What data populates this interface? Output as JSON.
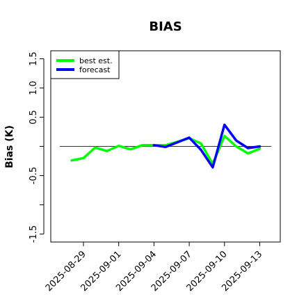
{
  "chart_data": {
    "type": "line",
    "title": "BIAS",
    "ylabel": "Bias (K)",
    "xlabel": "",
    "ylim": [
      -1.6,
      1.65
    ],
    "y_ticks": [
      -1.5,
      -1.0,
      -0.5,
      0.0,
      0.5,
      1.0,
      1.5
    ],
    "y_tick_labels": [
      "-1.5",
      "",
      "-0.5",
      "",
      "0.5",
      "1.0",
      "1.5"
    ],
    "x_ticks": [
      "2025-08-29",
      "2025-09-01",
      "2025-09-04",
      "2025-09-07",
      "2025-09-10",
      "2025-09-13"
    ],
    "x_tick_highlight": {
      "label": "2025-09-04",
      "color": "#228B22"
    },
    "reference_line": 0.0,
    "legend": {
      "placement": "top-left",
      "entries": [
        "best est.",
        "forecast"
      ]
    },
    "series": [
      {
        "name": "best est.",
        "color": "#00ff00",
        "x": [
          "2025-08-28",
          "2025-08-29",
          "2025-08-30",
          "2025-08-31",
          "2025-09-01",
          "2025-09-02",
          "2025-09-03",
          "2025-09-04",
          "2025-09-05",
          "2025-09-06",
          "2025-09-07",
          "2025-09-08",
          "2025-09-09",
          "2025-09-10",
          "2025-09-11",
          "2025-09-12",
          "2025-09-13"
        ],
        "values": [
          -0.24,
          -0.2,
          -0.02,
          -0.08,
          0.01,
          -0.05,
          0.02,
          0.02,
          0.02,
          0.08,
          0.14,
          0.05,
          -0.3,
          0.18,
          0.0,
          -0.12,
          -0.04
        ]
      },
      {
        "name": "forecast",
        "color": "#0000ff",
        "x": [
          "2025-09-04",
          "2025-09-05",
          "2025-09-06",
          "2025-09-07",
          "2025-09-08",
          "2025-09-09",
          "2025-09-10",
          "2025-09-11",
          "2025-09-12",
          "2025-09-13"
        ],
        "values": [
          0.02,
          -0.01,
          0.07,
          0.15,
          -0.06,
          -0.36,
          0.37,
          0.1,
          -0.03,
          0.0
        ]
      }
    ]
  }
}
